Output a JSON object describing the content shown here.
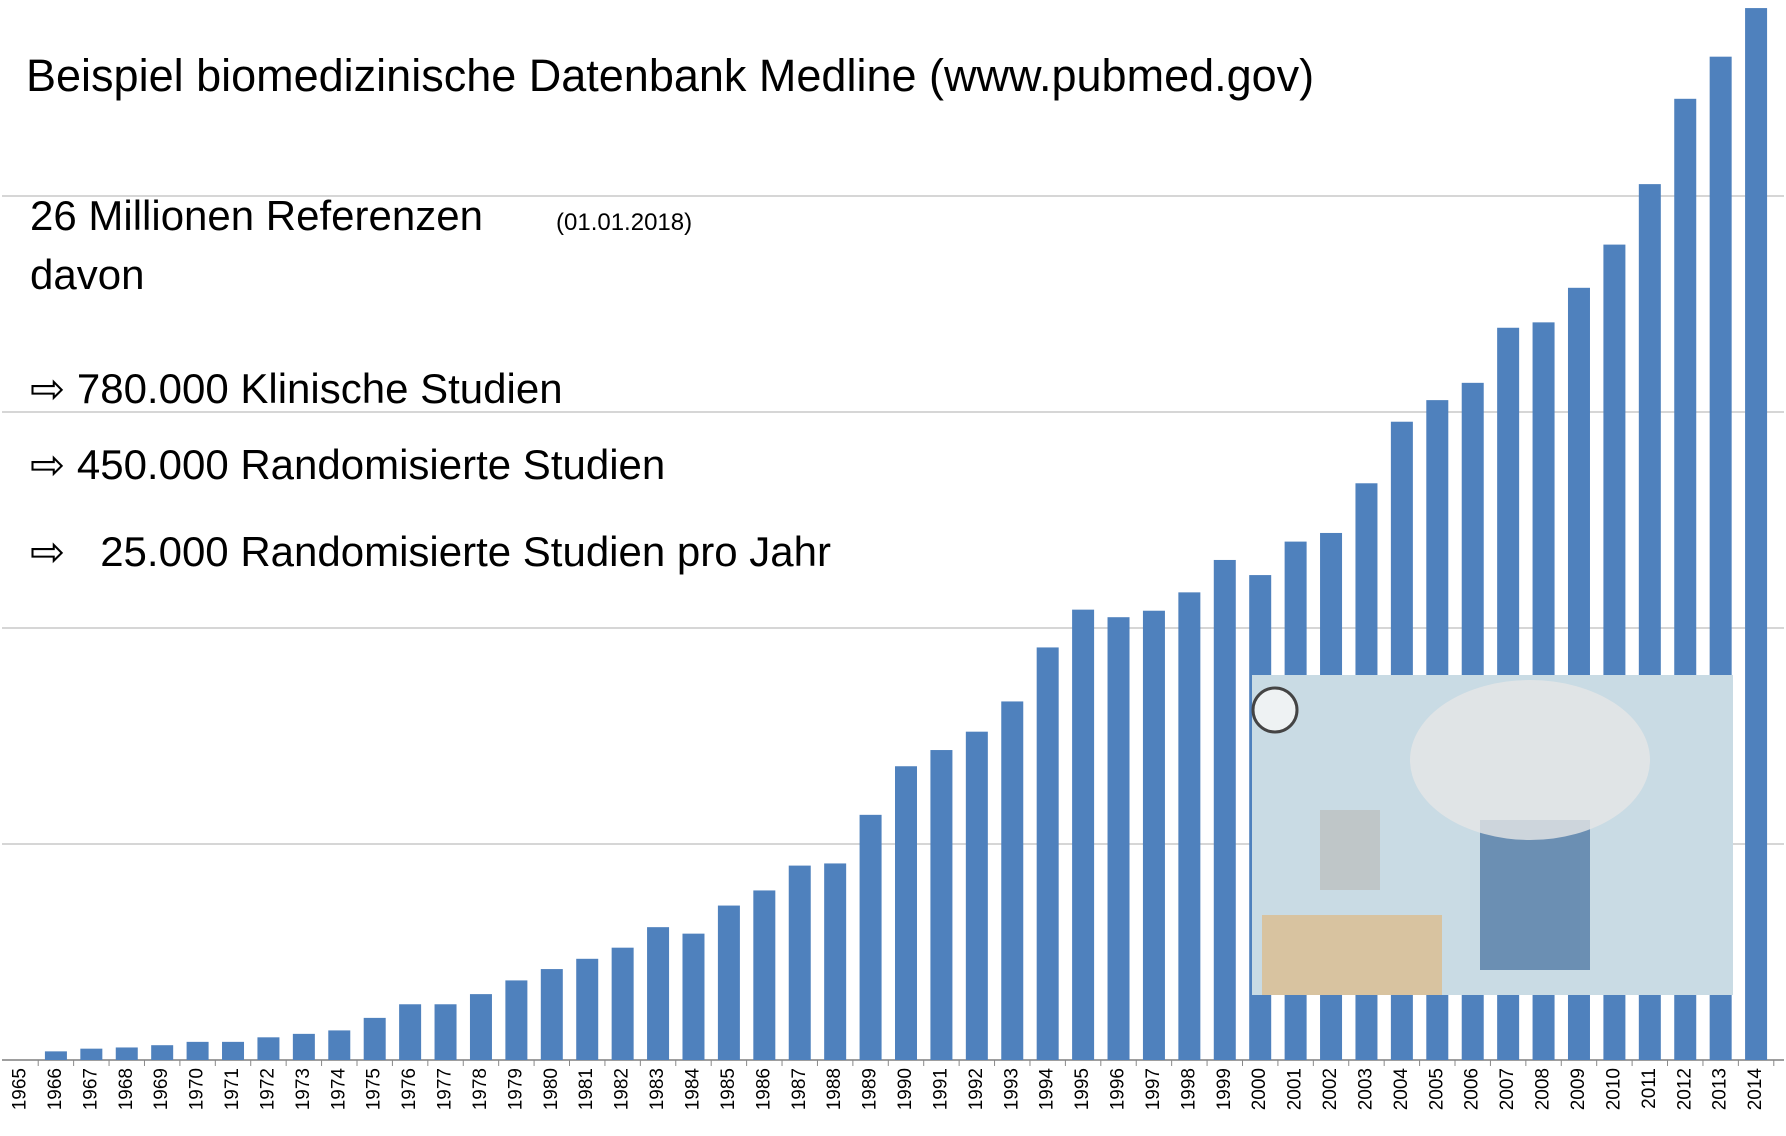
{
  "chart_data": {
    "type": "bar",
    "title": "Beispiel biomedizinische Datenbank Medline (www.pubmed.gov)",
    "annotations": [
      "26 Millionen Referenzen",
      "(01.01.2018)",
      "davon",
      "⇨ 780.000 Klinische Studien",
      "⇨ 450.000 Randomisierte Studien",
      "⇨   25.000 Randomisierte Studien pro Jahr"
    ],
    "categories": [
      "1965",
      "1966",
      "1967",
      "1968",
      "1969",
      "1970",
      "1971",
      "1972",
      "1973",
      "1974",
      "1975",
      "1976",
      "1977",
      "1978",
      "1979",
      "1980",
      "1981",
      "1982",
      "1983",
      "1984",
      "1985",
      "1986",
      "1987",
      "1988",
      "1989",
      "1990",
      "1991",
      "1992",
      "1993",
      "1994",
      "1995",
      "1996",
      "1997",
      "1998",
      "1999",
      "2000",
      "2001",
      "2002",
      "2003",
      "2004",
      "2005",
      "2006",
      "2007",
      "2008",
      "2009",
      "2010",
      "2011",
      "2012",
      "2013",
      "2014"
    ],
    "values": [
      0,
      8000,
      10500,
      11600,
      13700,
      16800,
      16800,
      21000,
      24200,
      27400,
      39000,
      51600,
      51600,
      61000,
      73700,
      84200,
      93700,
      104000,
      123000,
      117000,
      143000,
      157000,
      180000,
      182000,
      227000,
      272000,
      287000,
      304000,
      332000,
      382000,
      417000,
      410000,
      416000,
      433000,
      463000,
      449000,
      480000,
      488000,
      534000,
      591000,
      611000,
      627000,
      678000,
      683000,
      715000,
      755000,
      811000,
      890000,
      929000,
      974000
    ],
    "color": "#4f81bd",
    "ylim": [
      0,
      1000000
    ],
    "grid_lines": [
      0,
      200000,
      400000,
      600000,
      800000
    ],
    "grid": true
  }
}
